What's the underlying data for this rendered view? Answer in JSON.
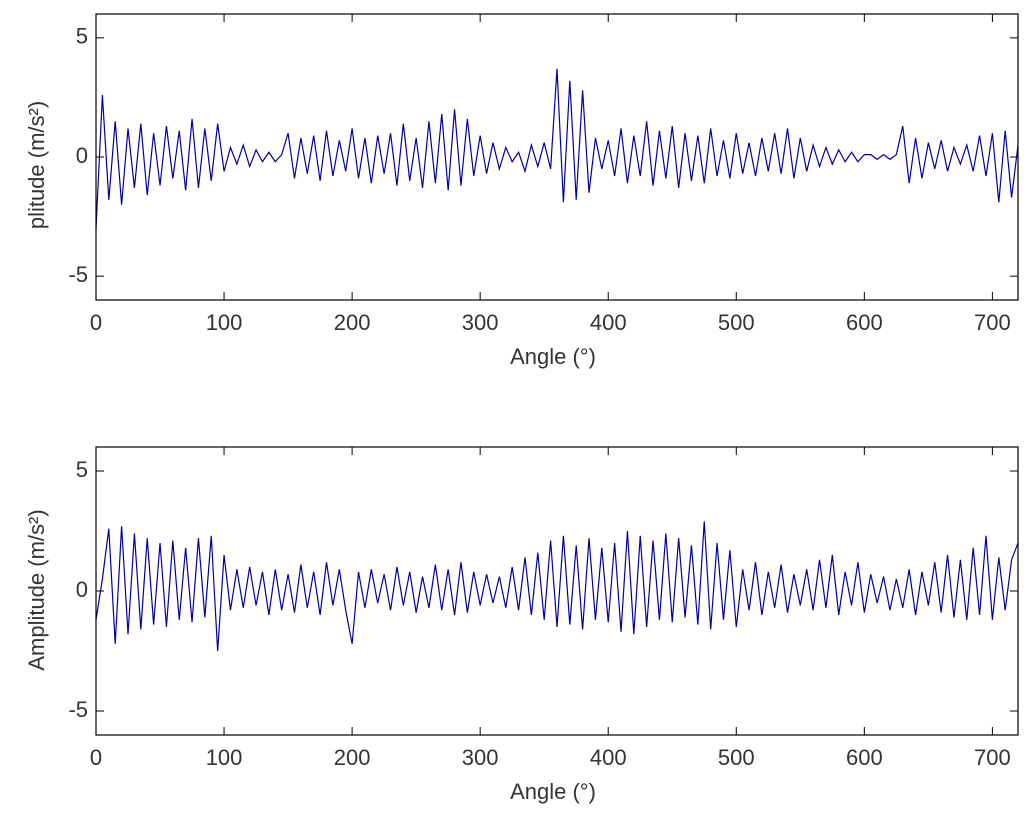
{
  "chart_data": [
    {
      "type": "line",
      "y_label": "plitude (m/s²)",
      "x_label": "Angle (°)",
      "x": [
        0,
        5,
        10,
        15,
        20,
        25,
        30,
        35,
        40,
        45,
        50,
        55,
        60,
        65,
        70,
        75,
        80,
        85,
        90,
        95,
        100,
        105,
        110,
        115,
        120,
        125,
        130,
        135,
        140,
        145,
        150,
        155,
        160,
        165,
        170,
        175,
        180,
        185,
        190,
        195,
        200,
        205,
        210,
        215,
        220,
        225,
        230,
        235,
        240,
        245,
        250,
        255,
        260,
        265,
        270,
        275,
        280,
        285,
        290,
        295,
        300,
        305,
        310,
        315,
        320,
        325,
        330,
        335,
        340,
        345,
        350,
        355,
        360,
        365,
        370,
        375,
        380,
        385,
        390,
        395,
        400,
        405,
        410,
        415,
        420,
        425,
        430,
        435,
        440,
        445,
        450,
        455,
        460,
        465,
        470,
        475,
        480,
        485,
        490,
        495,
        500,
        505,
        510,
        515,
        520,
        525,
        530,
        535,
        540,
        545,
        550,
        555,
        560,
        565,
        570,
        575,
        580,
        585,
        590,
        595,
        600,
        605,
        610,
        615,
        620,
        625,
        630,
        635,
        640,
        645,
        650,
        655,
        660,
        665,
        670,
        675,
        680,
        685,
        690,
        695,
        700,
        705,
        710,
        715,
        720
      ],
      "series": [
        {
          "color": "#0000a0",
          "values": [
            -3.0,
            2.6,
            -1.8,
            1.5,
            -2.0,
            1.2,
            -1.3,
            1.4,
            -1.6,
            1.0,
            -1.2,
            1.3,
            -0.9,
            1.1,
            -1.4,
            1.6,
            -1.3,
            1.2,
            -1.0,
            1.4,
            -0.6,
            0.4,
            -0.3,
            0.5,
            -0.4,
            0.3,
            -0.2,
            0.2,
            -0.2,
            0.1,
            1.0,
            -0.9,
            0.8,
            -0.7,
            0.9,
            -1.0,
            1.1,
            -0.8,
            0.7,
            -0.6,
            1.2,
            -0.9,
            0.8,
            -1.1,
            0.9,
            -0.7,
            1.0,
            -1.2,
            1.4,
            -1.0,
            0.8,
            -1.3,
            1.5,
            -1.1,
            1.8,
            -1.4,
            2.0,
            -1.2,
            1.6,
            -0.8,
            0.9,
            -0.7,
            0.6,
            -0.5,
            0.4,
            -0.2,
            0.2,
            -0.6,
            0.5,
            -0.4,
            0.6,
            -0.5,
            3.7,
            -1.9,
            3.2,
            -1.8,
            2.8,
            -1.5,
            0.8,
            -0.5,
            0.7,
            -0.8,
            1.2,
            -1.1,
            0.9,
            -0.8,
            1.5,
            -1.2,
            1.1,
            -0.9,
            1.3,
            -1.3,
            1.0,
            -1.0,
            0.9,
            -1.1,
            1.2,
            -0.8,
            0.7,
            -0.9,
            1.0,
            -0.7,
            0.6,
            -0.8,
            0.8,
            -0.6,
            1.0,
            -0.7,
            1.2,
            -0.9,
            0.8,
            -0.6,
            0.5,
            -0.4,
            0.4,
            -0.3,
            0.3,
            -0.2,
            0.2,
            -0.2,
            0.1,
            0.1,
            -0.1,
            0.1,
            -0.1,
            0.1,
            1.3,
            -1.1,
            0.8,
            -0.9,
            0.6,
            -0.5,
            0.7,
            -0.6,
            0.4,
            -0.3,
            0.5,
            -0.6,
            0.9,
            -0.8,
            1.0,
            -1.9,
            1.1,
            -1.7,
            0.5
          ]
        }
      ],
      "xlim": [
        0,
        720
      ],
      "ylim": [
        -6,
        6
      ],
      "xticks": [
        0,
        100,
        200,
        300,
        400,
        500,
        600,
        700
      ],
      "yticks": [
        -5,
        0,
        5
      ]
    },
    {
      "type": "line",
      "y_label": "Amplitude (m/s²)",
      "x_label": "Angle (°)",
      "x": [
        0,
        5,
        10,
        15,
        20,
        25,
        30,
        35,
        40,
        45,
        50,
        55,
        60,
        65,
        70,
        75,
        80,
        85,
        90,
        95,
        100,
        105,
        110,
        115,
        120,
        125,
        130,
        135,
        140,
        145,
        150,
        155,
        160,
        165,
        170,
        175,
        180,
        185,
        190,
        195,
        200,
        205,
        210,
        215,
        220,
        225,
        230,
        235,
        240,
        245,
        250,
        255,
        260,
        265,
        270,
        275,
        280,
        285,
        290,
        295,
        300,
        305,
        310,
        315,
        320,
        325,
        330,
        335,
        340,
        345,
        350,
        355,
        360,
        365,
        370,
        375,
        380,
        385,
        390,
        395,
        400,
        405,
        410,
        415,
        420,
        425,
        430,
        435,
        440,
        445,
        450,
        455,
        460,
        465,
        470,
        475,
        480,
        485,
        490,
        495,
        500,
        505,
        510,
        515,
        520,
        525,
        530,
        535,
        540,
        545,
        550,
        555,
        560,
        565,
        570,
        575,
        580,
        585,
        590,
        595,
        600,
        605,
        610,
        615,
        620,
        625,
        630,
        635,
        640,
        645,
        650,
        655,
        660,
        665,
        670,
        675,
        680,
        685,
        690,
        695,
        700,
        705,
        710,
        715,
        720
      ],
      "series": [
        {
          "color": "#0000a0",
          "values": [
            -1.2,
            0.5,
            2.6,
            -2.2,
            2.7,
            -1.8,
            2.4,
            -1.6,
            2.2,
            -1.4,
            2.0,
            -1.5,
            2.1,
            -1.2,
            1.8,
            -1.3,
            2.2,
            -1.1,
            2.3,
            -2.5,
            1.5,
            -0.8,
            0.9,
            -0.7,
            1.0,
            -0.6,
            0.8,
            -1.0,
            0.9,
            -0.8,
            0.7,
            -0.9,
            1.1,
            -0.7,
            0.8,
            -1.0,
            1.2,
            -0.6,
            0.9,
            -0.8,
            -2.2,
            0.8,
            -0.7,
            0.9,
            -0.5,
            0.7,
            -0.8,
            1.0,
            -0.6,
            0.8,
            -0.9,
            0.6,
            -0.7,
            1.1,
            -0.8,
            0.9,
            -1.0,
            1.2,
            -0.9,
            0.8,
            -0.6,
            0.7,
            -0.5,
            0.6,
            -0.7,
            1.0,
            -0.8,
            1.4,
            -1.0,
            1.6,
            -1.2,
            2.1,
            -1.5,
            2.3,
            -1.4,
            1.9,
            -1.6,
            2.2,
            -1.2,
            1.8,
            -1.3,
            2.0,
            -1.7,
            2.5,
            -1.8,
            2.3,
            -1.5,
            2.1,
            -1.2,
            2.4,
            -1.3,
            2.2,
            -1.1,
            1.9,
            -1.4,
            2.9,
            -1.6,
            2.0,
            -1.2,
            1.7,
            -1.5,
            0.9,
            -0.8,
            1.2,
            -1.0,
            0.8,
            -0.7,
            1.1,
            -0.9,
            0.7,
            -0.6,
            0.9,
            -0.8,
            1.3,
            -0.7,
            1.5,
            -1.0,
            0.8,
            -0.6,
            1.2,
            -0.9,
            0.7,
            -0.5,
            0.6,
            -0.8,
            0.5,
            -0.7,
            0.9,
            -1.0,
            0.8,
            -0.6,
            1.2,
            -0.9,
            1.5,
            -1.1,
            1.3,
            -1.2,
            1.8,
            -1.0,
            2.3,
            -1.2,
            1.4,
            -0.8,
            1.3,
            2.0
          ]
        }
      ],
      "xlim": [
        0,
        720
      ],
      "ylim": [
        -6,
        6
      ],
      "xticks": [
        0,
        100,
        200,
        300,
        400,
        500,
        600,
        700
      ],
      "yticks": [
        -5,
        0,
        5
      ]
    }
  ]
}
